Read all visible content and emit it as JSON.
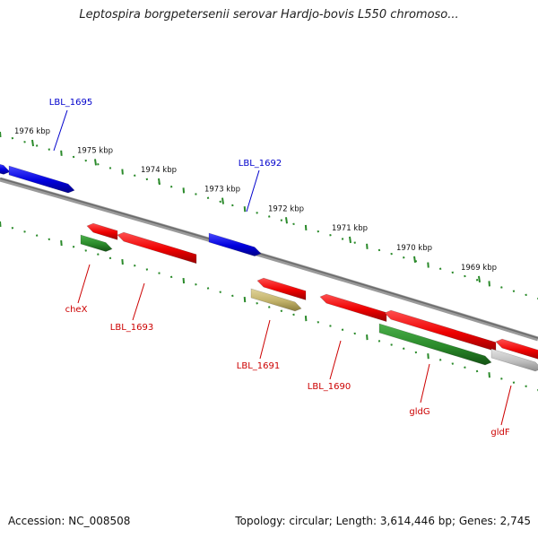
{
  "title": "Leptospira borgpetersenii serovar Hardjo-bovis L550 chromoso...",
  "footer": {
    "accession": "Accession: NC_008508",
    "summary": "Topology: circular; Length: 3,614,446 bp; Genes: 2,745"
  },
  "colors": {
    "red": "#ee0000",
    "blue": "#0000dd",
    "green": "#2a8a2a",
    "khaki": "#c8b870",
    "gray": "#bbbbbb",
    "backbone": "#888888",
    "tick": "#2a8a2a",
    "label_red": "#cc0000",
    "label_blue": "#0000cc"
  },
  "ticks": [
    {
      "kbp": 1976,
      "label": "1976 kbp"
    },
    {
      "kbp": 1975,
      "label": "1975 kbp"
    },
    {
      "kbp": 1974,
      "label": "1974 kbp"
    },
    {
      "kbp": 1973,
      "label": "1973 kbp"
    },
    {
      "kbp": 1972,
      "label": "1972 kbp"
    },
    {
      "kbp": 1971,
      "label": "1971 kbp"
    },
    {
      "kbp": 1970,
      "label": "1970 kbp"
    },
    {
      "kbp": 1969,
      "label": "1969 kbp"
    }
  ],
  "features": [
    {
      "name": "blue-left-edge",
      "color": "blue",
      "label": null
    },
    {
      "name": "LBL_1695",
      "color": "blue",
      "label": "LBL_1695"
    },
    {
      "name": "cheX-red",
      "color": "red",
      "label": null
    },
    {
      "name": "cheX",
      "color": "green",
      "label": "cheX"
    },
    {
      "name": "LBL_1693",
      "color": "red",
      "label": "LBL_1693"
    },
    {
      "name": "LBL_1692",
      "color": "blue",
      "label": "LBL_1692"
    },
    {
      "name": "red-1691a",
      "color": "red",
      "label": null
    },
    {
      "name": "LBL_1691",
      "color": "khaki",
      "label": "LBL_1691"
    },
    {
      "name": "LBL_1690",
      "color": "red",
      "label": "LBL_1690"
    },
    {
      "name": "red-1690b",
      "color": "red",
      "label": null
    },
    {
      "name": "gldG",
      "color": "green",
      "label": "gldG"
    },
    {
      "name": "red-right-edge",
      "color": "red",
      "label": null
    },
    {
      "name": "gldF",
      "color": "gray",
      "label": "gldF"
    }
  ]
}
